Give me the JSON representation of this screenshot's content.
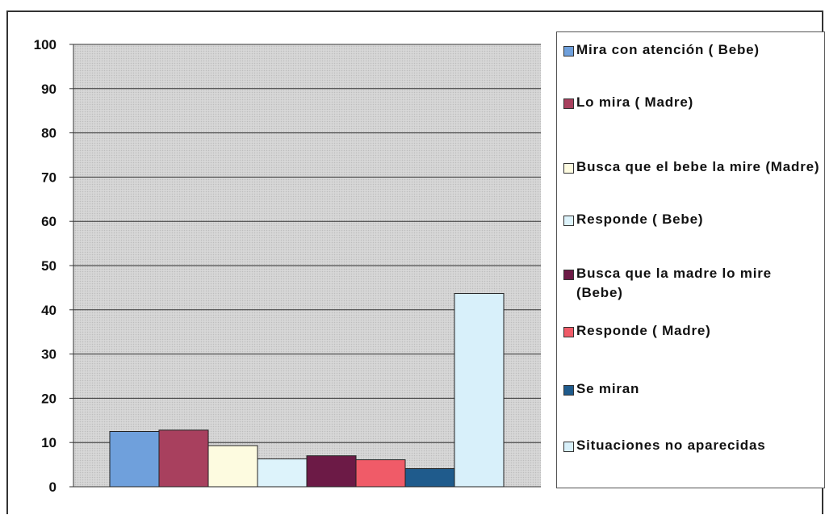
{
  "chart_data": {
    "type": "bar",
    "title": "",
    "xlabel": "",
    "ylabel": "",
    "ylim": [
      0,
      100
    ],
    "yticks": [
      "0",
      "10",
      "20",
      "30",
      "40",
      "50",
      "60",
      "70",
      "80",
      "90",
      "100"
    ],
    "grid": true,
    "legend_position": "right",
    "series": [
      {
        "name": "Mira con atención ( Bebe)",
        "value": 12.5,
        "color": "#6fa0dc"
      },
      {
        "name": "Lo mira ( Madre)",
        "value": 12.8,
        "color": "#a8405e"
      },
      {
        "name": "Busca que el bebe la mire (Madre)",
        "value": 9.3,
        "color": "#fdfbe0"
      },
      {
        "name": "Responde ( Bebe)",
        "value": 6.3,
        "color": "#ddf3fb"
      },
      {
        "name": "Busca que la madre lo mire (Bebe)",
        "value": 7.0,
        "color": "#6c1a46"
      },
      {
        "name": "Responde ( Madre)",
        "value": 6.1,
        "color": "#f05b68"
      },
      {
        "name": "Se miran",
        "value": 4.1,
        "color": "#1f5b8c"
      },
      {
        "name": "Situaciones no aparecidas",
        "value": 43.7,
        "color": "#d8f0fa"
      }
    ],
    "plot_background": "#d4d4d4"
  }
}
